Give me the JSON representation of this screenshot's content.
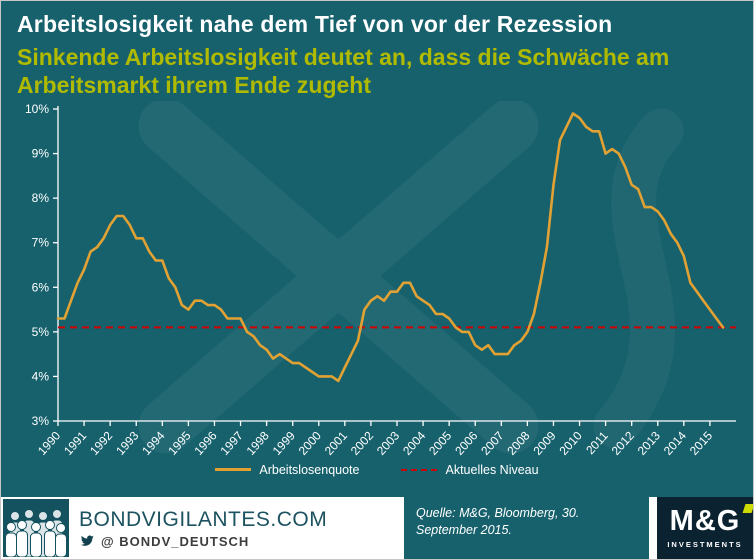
{
  "header": {
    "title": "Arbeitslosigkeit nahe dem Tief von vor der Rezession",
    "subtitle": "Sinkende Arbeitslosigkeit deutet an, dass die Schwäche am Arbeitsmarkt ihrem Ende zugeht"
  },
  "chart_data": {
    "type": "line",
    "title": "",
    "xlabel": "",
    "ylabel": "",
    "xlim": [
      1990,
      2016
    ],
    "ylim": [
      3,
      10
    ],
    "grid": false,
    "legend_position": "bottom",
    "y_ticks": [
      3,
      4,
      5,
      6,
      7,
      8,
      9,
      10
    ],
    "y_tick_suffix": "%",
    "x_ticks": [
      "1990",
      "1991",
      "1992",
      "1993",
      "1994",
      "1995",
      "1996",
      "1997",
      "1998",
      "1999",
      "2000",
      "2001",
      "2002",
      "2003",
      "2004",
      "2005",
      "2006",
      "2007",
      "2008",
      "2009",
      "2010",
      "2011",
      "2012",
      "2013",
      "2014",
      "2015"
    ],
    "series": [
      {
        "name": "Arbeitslosenquote",
        "color": "#e2a233",
        "style": "solid",
        "points": [
          [
            1990.0,
            5.3
          ],
          [
            1990.25,
            5.3
          ],
          [
            1990.5,
            5.7
          ],
          [
            1990.75,
            6.1
          ],
          [
            1991.0,
            6.4
          ],
          [
            1991.25,
            6.8
          ],
          [
            1991.5,
            6.9
          ],
          [
            1991.75,
            7.1
          ],
          [
            1992.0,
            7.4
          ],
          [
            1992.25,
            7.6
          ],
          [
            1992.5,
            7.6
          ],
          [
            1992.75,
            7.4
          ],
          [
            1993.0,
            7.1
          ],
          [
            1993.25,
            7.1
          ],
          [
            1993.5,
            6.8
          ],
          [
            1993.75,
            6.6
          ],
          [
            1994.0,
            6.6
          ],
          [
            1994.25,
            6.2
          ],
          [
            1994.5,
            6.0
          ],
          [
            1994.75,
            5.6
          ],
          [
            1995.0,
            5.5
          ],
          [
            1995.25,
            5.7
          ],
          [
            1995.5,
            5.7
          ],
          [
            1995.75,
            5.6
          ],
          [
            1996.0,
            5.6
          ],
          [
            1996.25,
            5.5
          ],
          [
            1996.5,
            5.3
          ],
          [
            1996.75,
            5.3
          ],
          [
            1997.0,
            5.3
          ],
          [
            1997.25,
            5.0
          ],
          [
            1997.5,
            4.9
          ],
          [
            1997.75,
            4.7
          ],
          [
            1998.0,
            4.6
          ],
          [
            1998.25,
            4.4
          ],
          [
            1998.5,
            4.5
          ],
          [
            1998.75,
            4.4
          ],
          [
            1999.0,
            4.3
          ],
          [
            1999.25,
            4.3
          ],
          [
            1999.5,
            4.2
          ],
          [
            1999.75,
            4.1
          ],
          [
            2000.0,
            4.0
          ],
          [
            2000.25,
            4.0
          ],
          [
            2000.5,
            4.0
          ],
          [
            2000.75,
            3.9
          ],
          [
            2001.0,
            4.2
          ],
          [
            2001.25,
            4.5
          ],
          [
            2001.5,
            4.8
          ],
          [
            2001.75,
            5.5
          ],
          [
            2002.0,
            5.7
          ],
          [
            2002.25,
            5.8
          ],
          [
            2002.5,
            5.7
          ],
          [
            2002.75,
            5.9
          ],
          [
            2003.0,
            5.9
          ],
          [
            2003.25,
            6.1
          ],
          [
            2003.5,
            6.1
          ],
          [
            2003.75,
            5.8
          ],
          [
            2004.0,
            5.7
          ],
          [
            2004.25,
            5.6
          ],
          [
            2004.5,
            5.4
          ],
          [
            2004.75,
            5.4
          ],
          [
            2005.0,
            5.3
          ],
          [
            2005.25,
            5.1
          ],
          [
            2005.5,
            5.0
          ],
          [
            2005.75,
            5.0
          ],
          [
            2006.0,
            4.7
          ],
          [
            2006.25,
            4.6
          ],
          [
            2006.5,
            4.7
          ],
          [
            2006.75,
            4.5
          ],
          [
            2007.0,
            4.5
          ],
          [
            2007.25,
            4.5
          ],
          [
            2007.5,
            4.7
          ],
          [
            2007.75,
            4.8
          ],
          [
            2008.0,
            5.0
          ],
          [
            2008.25,
            5.4
          ],
          [
            2008.5,
            6.1
          ],
          [
            2008.75,
            6.9
          ],
          [
            2009.0,
            8.3
          ],
          [
            2009.25,
            9.3
          ],
          [
            2009.5,
            9.6
          ],
          [
            2009.75,
            9.9
          ],
          [
            2010.0,
            9.8
          ],
          [
            2010.25,
            9.6
          ],
          [
            2010.5,
            9.5
          ],
          [
            2010.75,
            9.5
          ],
          [
            2011.0,
            9.0
          ],
          [
            2011.25,
            9.1
          ],
          [
            2011.5,
            9.0
          ],
          [
            2011.75,
            8.7
          ],
          [
            2012.0,
            8.3
          ],
          [
            2012.25,
            8.2
          ],
          [
            2012.5,
            7.8
          ],
          [
            2012.75,
            7.8
          ],
          [
            2013.0,
            7.7
          ],
          [
            2013.25,
            7.5
          ],
          [
            2013.5,
            7.2
          ],
          [
            2013.75,
            7.0
          ],
          [
            2014.0,
            6.7
          ],
          [
            2014.25,
            6.1
          ],
          [
            2014.5,
            5.9
          ],
          [
            2014.75,
            5.7
          ],
          [
            2015.0,
            5.5
          ],
          [
            2015.25,
            5.3
          ],
          [
            2015.5,
            5.1
          ]
        ]
      },
      {
        "name": "Aktuelles Niveau",
        "color": "#d10000",
        "style": "dashed",
        "value": 5.1
      }
    ]
  },
  "footer": {
    "site": "BONDVIGILANTES.COM",
    "twitter_handle": "@ BONDV_DEUTSCH",
    "source": "Quelle: M&G, Bloomberg, 30. September 2015.",
    "mg_logo": "M&G",
    "mg_sub": "INVESTMENTS"
  },
  "colors": {
    "background": "#17616d",
    "title": "#ffffff",
    "subtitle": "#b0ba00",
    "line": "#e2a233",
    "current_level": "#d10000",
    "footer_bg": "#ffffff",
    "mg_box": "#0b2230",
    "mg_accent": "#cddb00"
  }
}
